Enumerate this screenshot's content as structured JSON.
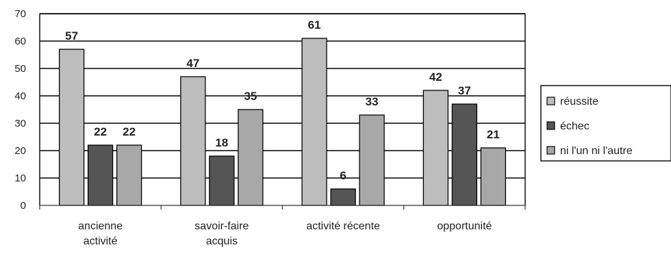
{
  "chart_data": {
    "type": "bar",
    "title": "",
    "xlabel": "",
    "ylabel": "",
    "ylim": [
      0,
      70
    ],
    "yticks": [
      "0",
      "10",
      "20",
      "30",
      "40",
      "50",
      "60",
      "70"
    ],
    "grid": "horizontal",
    "legend_position": "right",
    "categories": [
      [
        "ancienne",
        "activité"
      ],
      [
        "savoir-faire",
        "acquis"
      ],
      [
        "activité récente"
      ],
      [
        "opportunité"
      ]
    ],
    "series": [
      {
        "name": "réussite",
        "values": [
          57,
          47,
          61,
          42
        ],
        "color": "#bdbdbd"
      },
      {
        "name": "échec",
        "values": [
          22,
          18,
          6,
          37
        ],
        "color": "#555555"
      },
      {
        "name": "ni l'un ni l'autre",
        "values": [
          22,
          35,
          33,
          21
        ],
        "color": "#a8a8a8"
      }
    ]
  }
}
